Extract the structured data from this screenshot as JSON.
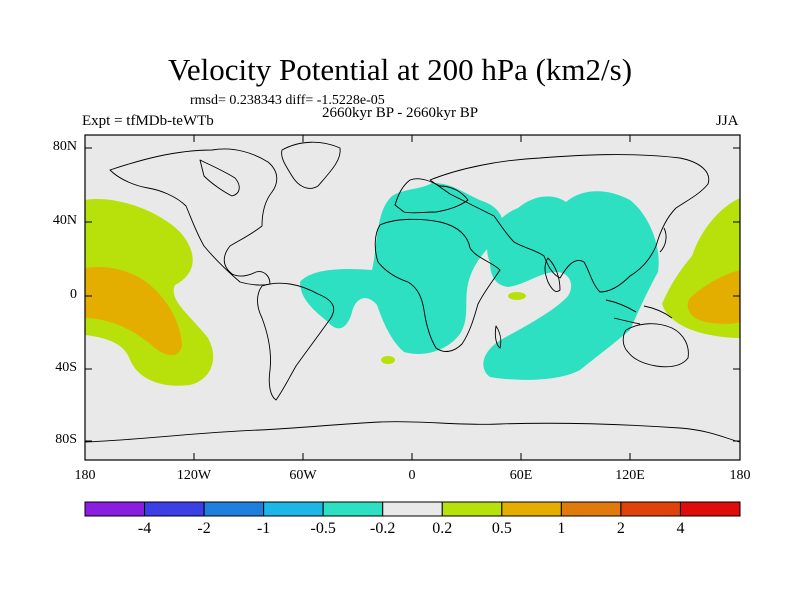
{
  "title": "Velocity Potential at 200 hPa (km2/s)",
  "stats_line": "rmsd= 0.238343 diff= -1.5228e-05",
  "period": "2660kyr BP - 2660kyr BP",
  "experiment_label": "Expt = tfMDb-teWTb",
  "season": "JJA",
  "lat_ticks": [
    "80N",
    "40N",
    "0",
    "40S",
    "80S"
  ],
  "lon_ticks": [
    "180",
    "120W",
    "60W",
    "0",
    "60E",
    "120E",
    "180"
  ],
  "colorbar": {
    "colors": [
      "#8a1de0",
      "#3c3ee6",
      "#1f7fdc",
      "#1cb7e6",
      "#2ee0c2",
      "#e9e9e9",
      "#b8e10b",
      "#e3ae00",
      "#e07b0b",
      "#e0420c",
      "#e00b0b"
    ],
    "labels": [
      "-4",
      "-2",
      "-1",
      "-0.5",
      "-0.2",
      "0.2",
      "0.5",
      "1",
      "2",
      "4"
    ]
  },
  "fills": {
    "background": "#e9e9e9",
    "neg": "#2ee0c2",
    "pos_low": "#b8e10b",
    "pos_mid": "#e3ae00"
  }
}
